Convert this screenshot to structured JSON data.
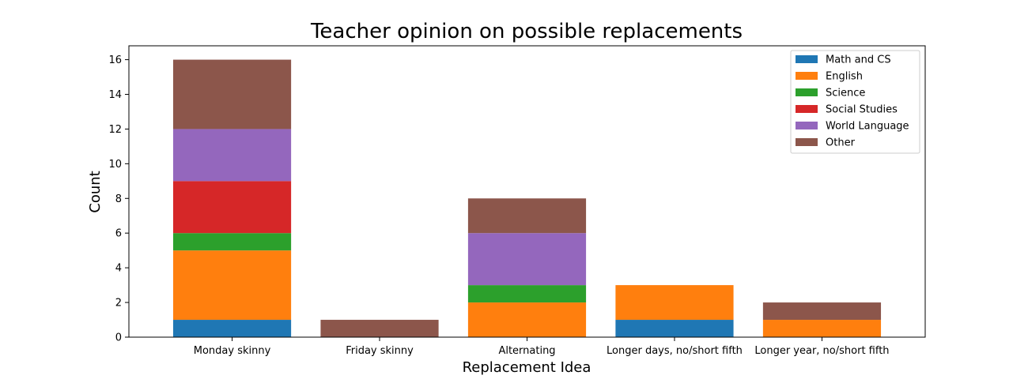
{
  "chart_data": {
    "type": "bar",
    "stacked": true,
    "title": "Teacher opinion on possible replacements",
    "xlabel": "Replacement Idea",
    "ylabel": "Count",
    "ylim": [
      0,
      16.8
    ],
    "yticks": [
      0,
      2,
      4,
      6,
      8,
      10,
      12,
      14,
      16
    ],
    "grid": false,
    "legend_position": "top-right",
    "categories": [
      "Monday skinny",
      "Friday skinny",
      "Alternating",
      "Longer days, no/short fifth",
      "Longer year, no/short fifth"
    ],
    "series": [
      {
        "name": "Math and CS",
        "color": "#1f77b4",
        "values": [
          1,
          0,
          0,
          1,
          0
        ]
      },
      {
        "name": "English",
        "color": "#ff7f0e",
        "values": [
          4,
          0,
          2,
          2,
          1
        ]
      },
      {
        "name": "Science",
        "color": "#2ca02c",
        "values": [
          1,
          0,
          1,
          0,
          0
        ]
      },
      {
        "name": "Social Studies",
        "color": "#d62728",
        "values": [
          3,
          0,
          0,
          0,
          0
        ]
      },
      {
        "name": "World Language",
        "color": "#9467bd",
        "values": [
          3,
          0,
          3,
          0,
          0
        ]
      },
      {
        "name": "Other",
        "color": "#8c564b",
        "values": [
          4,
          1,
          2,
          0,
          1
        ]
      }
    ]
  }
}
